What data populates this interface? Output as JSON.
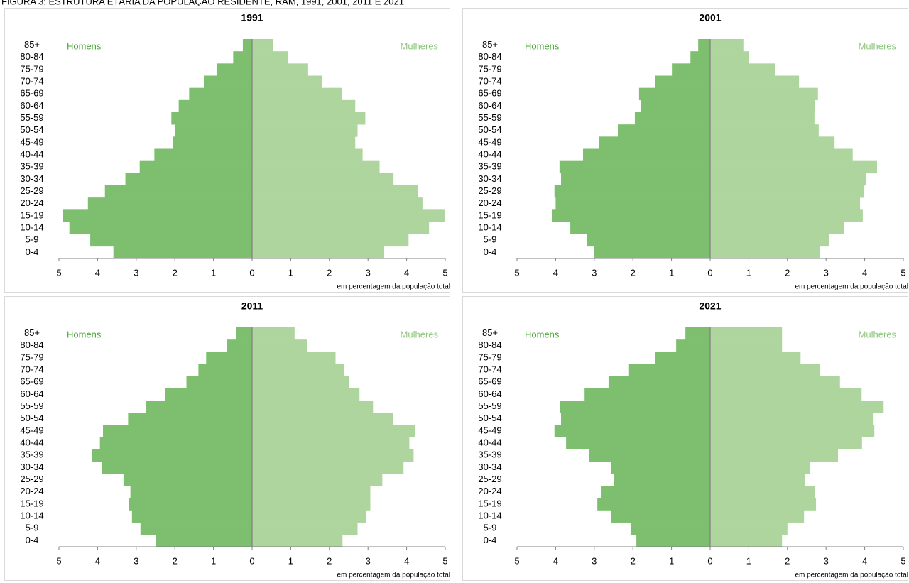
{
  "title": "FIGURA 3: ESTRUTURA ETÁRIA DA POPULAÇÃO RESIDENTE, RAM, 1991, 2001, 2011 E 2021",
  "chart_data": [
    {
      "type": "pyramid",
      "title": "1991",
      "categories": [
        "0-4",
        "5-9",
        "10-14",
        "15-19",
        "20-24",
        "25-29",
        "30-34",
        "35-39",
        "40-44",
        "45-49",
        "50-54",
        "55-59",
        "60-64",
        "65-69",
        "70-74",
        "75-79",
        "80-84",
        "85+"
      ],
      "series": [
        {
          "name": "Homens",
          "color": "#7dbf6e",
          "side": "left",
          "values": [
            3.59,
            4.19,
            4.73,
            4.89,
            4.25,
            3.81,
            3.28,
            2.91,
            2.53,
            2.05,
            2.0,
            2.09,
            1.9,
            1.63,
            1.25,
            0.92,
            0.49,
            0.24
          ]
        },
        {
          "name": "Mulheres",
          "color": "#aed59e",
          "side": "right",
          "values": [
            3.42,
            4.05,
            4.58,
            5.0,
            4.41,
            4.29,
            3.66,
            3.3,
            2.86,
            2.67,
            2.73,
            2.93,
            2.67,
            2.33,
            1.81,
            1.45,
            0.93,
            0.55
          ]
        }
      ],
      "xlim": [
        -5,
        5
      ],
      "xticks": [
        {
          "value": -5,
          "label": "5"
        },
        {
          "value": -4,
          "label": "4"
        },
        {
          "value": -3,
          "label": "3"
        },
        {
          "value": -2,
          "label": "2"
        },
        {
          "value": -1,
          "label": "1"
        },
        0,
        1,
        2,
        3,
        4,
        5
      ],
      "xlabel": "em percentagem da população total"
    },
    {
      "type": "pyramid",
      "title": "2001",
      "categories": [
        "0-4",
        "5-9",
        "10-14",
        "15-19",
        "20-24",
        "25-29",
        "30-34",
        "35-39",
        "40-44",
        "45-49",
        "50-54",
        "55-59",
        "60-64",
        "65-69",
        "70-74",
        "75-79",
        "80-84",
        "85+"
      ],
      "series": [
        {
          "name": "Homens",
          "color": "#7dbf6e",
          "side": "left",
          "values": [
            3.0,
            3.18,
            3.62,
            4.1,
            4.0,
            4.03,
            3.86,
            3.9,
            3.29,
            2.87,
            2.39,
            1.95,
            1.8,
            1.84,
            1.43,
            0.99,
            0.51,
            0.31
          ]
        },
        {
          "name": "Mulheres",
          "color": "#aed59e",
          "side": "right",
          "values": [
            2.85,
            3.07,
            3.46,
            3.95,
            3.88,
            3.99,
            4.03,
            4.32,
            3.69,
            3.22,
            2.81,
            2.7,
            2.72,
            2.79,
            2.3,
            1.69,
            1.01,
            0.86
          ]
        }
      ],
      "xlim": [
        -5,
        5
      ],
      "xticks": [
        {
          "value": -5,
          "label": "5"
        },
        {
          "value": -4,
          "label": "4"
        },
        {
          "value": -3,
          "label": "3"
        },
        {
          "value": -2,
          "label": "2"
        },
        {
          "value": -1,
          "label": "1"
        },
        0,
        1,
        2,
        3,
        4,
        5
      ],
      "xlabel": "em percentagem da população total"
    },
    {
      "type": "pyramid",
      "title": "2011",
      "categories": [
        "0-4",
        "5-9",
        "10-14",
        "15-19",
        "20-24",
        "25-29",
        "30-34",
        "35-39",
        "40-44",
        "45-49",
        "50-54",
        "55-59",
        "60-64",
        "65-69",
        "70-74",
        "75-79",
        "80-84",
        "85+"
      ],
      "series": [
        {
          "name": "Homens",
          "color": "#7dbf6e",
          "side": "left",
          "values": [
            2.49,
            2.89,
            3.11,
            3.19,
            3.15,
            3.33,
            3.88,
            4.14,
            3.94,
            3.86,
            3.21,
            2.75,
            2.25,
            1.7,
            1.39,
            1.19,
            0.66,
            0.42
          ]
        },
        {
          "name": "Mulheres",
          "color": "#aed59e",
          "side": "right",
          "values": [
            2.34,
            2.73,
            2.95,
            3.06,
            3.06,
            3.37,
            3.92,
            4.18,
            4.07,
            4.21,
            3.64,
            3.13,
            2.78,
            2.51,
            2.38,
            2.16,
            1.43,
            1.1
          ]
        }
      ],
      "xlim": [
        -5,
        5
      ],
      "xticks": [
        {
          "value": -5,
          "label": "5"
        },
        {
          "value": -4,
          "label": "4"
        },
        {
          "value": -3,
          "label": "3"
        },
        {
          "value": -2,
          "label": "2"
        },
        {
          "value": -1,
          "label": "1"
        },
        0,
        1,
        2,
        3,
        4,
        5
      ],
      "xlabel": "em percentagem da população total"
    },
    {
      "type": "pyramid",
      "title": "2021",
      "categories": [
        "0-4",
        "5-9",
        "10-14",
        "15-19",
        "20-24",
        "25-29",
        "30-34",
        "35-39",
        "40-44",
        "45-49",
        "50-54",
        "55-59",
        "60-64",
        "65-69",
        "70-74",
        "75-79",
        "80-84",
        "85+"
      ],
      "series": [
        {
          "name": "Homens",
          "color": "#7dbf6e",
          "side": "left",
          "values": [
            1.91,
            2.06,
            2.57,
            2.92,
            2.83,
            2.5,
            2.57,
            3.13,
            3.73,
            4.03,
            3.86,
            3.88,
            3.25,
            2.63,
            2.1,
            1.43,
            0.88,
            0.64
          ]
        },
        {
          "name": "Mulheres",
          "color": "#aed59e",
          "side": "right",
          "values": [
            1.86,
            2.0,
            2.43,
            2.74,
            2.72,
            2.46,
            2.59,
            3.31,
            3.93,
            4.25,
            4.23,
            4.49,
            3.92,
            3.36,
            2.85,
            2.34,
            1.86,
            1.86
          ]
        }
      ],
      "xlim": [
        -5,
        5
      ],
      "xticks": [
        {
          "value": -5,
          "label": "5"
        },
        {
          "value": -4,
          "label": "4"
        },
        {
          "value": -3,
          "label": "3"
        },
        {
          "value": -2,
          "label": "2"
        },
        {
          "value": -1,
          "label": "1"
        },
        0,
        1,
        2,
        3,
        4,
        5
      ],
      "xlabel": "em percentagem da população total"
    }
  ]
}
